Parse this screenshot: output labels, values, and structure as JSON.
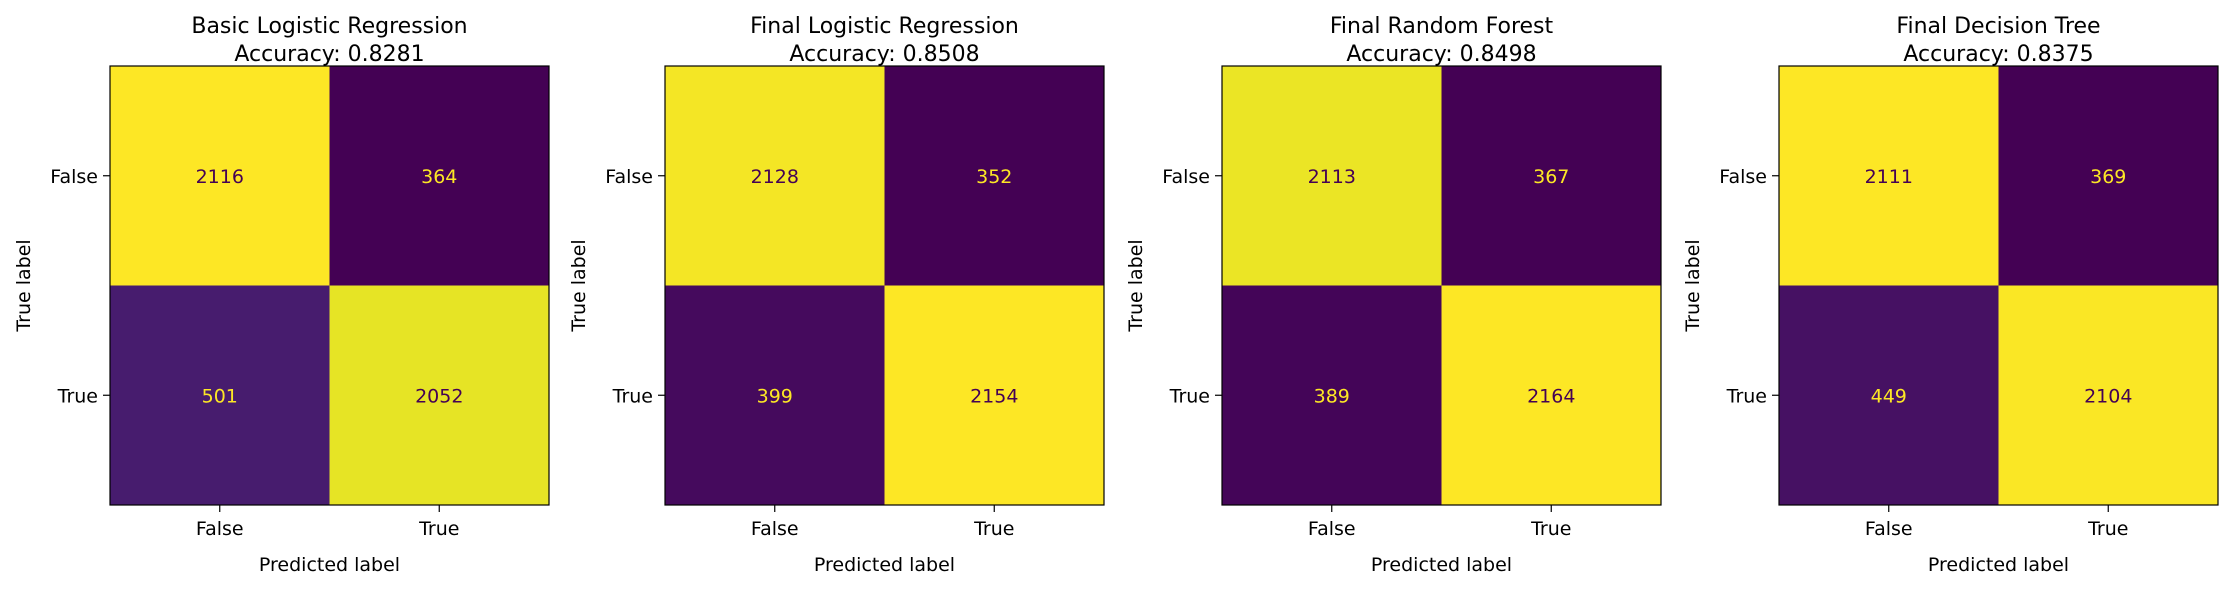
{
  "chart_data": [
    {
      "type": "heatmap",
      "title": "Basic Logistic Regression",
      "subtitle": "Accuracy: 0.8281",
      "xlabel": "Predicted label",
      "ylabel": "True label",
      "x_categories": [
        "False",
        "True"
      ],
      "y_categories": [
        "False",
        "True"
      ],
      "values": [
        [
          2116,
          364
        ],
        [
          501,
          2052
        ]
      ],
      "grid": false,
      "colormap": "viridis"
    },
    {
      "type": "heatmap",
      "title": "Final Logistic Regression",
      "subtitle": "Accuracy: 0.8508",
      "xlabel": "Predicted label",
      "ylabel": "True label",
      "x_categories": [
        "False",
        "True"
      ],
      "y_categories": [
        "False",
        "True"
      ],
      "values": [
        [
          2128,
          352
        ],
        [
          399,
          2154
        ]
      ],
      "grid": false,
      "colormap": "viridis"
    },
    {
      "type": "heatmap",
      "title": "Final Random Forest",
      "subtitle": "Accuracy: 0.8498",
      "xlabel": "Predicted label",
      "ylabel": "True label",
      "x_categories": [
        "False",
        "True"
      ],
      "y_categories": [
        "False",
        "True"
      ],
      "values": [
        [
          2113,
          367
        ],
        [
          389,
          2164
        ]
      ],
      "grid": false,
      "colormap": "viridis"
    },
    {
      "type": "heatmap",
      "title": "Final Decision Tree",
      "subtitle": "Accuracy: 0.8375",
      "xlabel": "Predicted label",
      "ylabel": "True label",
      "x_categories": [
        "False",
        "True"
      ],
      "y_categories": [
        "False",
        "True"
      ],
      "values": [
        [
          2111,
          369
        ],
        [
          449,
          2104
        ]
      ],
      "grid": false,
      "colormap": "viridis"
    }
  ],
  "colors": {
    "viridis_low": "#440154",
    "viridis_high": "#fde725",
    "text_on_dark": "#fde725",
    "text_on_light": "#440154"
  }
}
